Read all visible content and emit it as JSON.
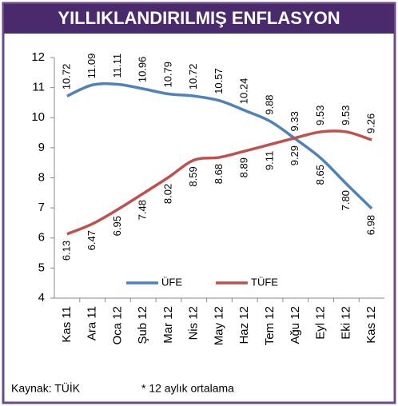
{
  "chart_data": {
    "type": "line",
    "title": "YILLIKLANDIRILMIŞ ENFLASYON",
    "categories": [
      "Kas 11",
      "Ara 11",
      "Oca 12",
      "Şub 12",
      "Mar 12",
      "Nis 12",
      "May 12",
      "Haz 12",
      "Tem 12",
      "Ağu 12",
      "Eyl 12",
      "Eki 12",
      "Kas 12"
    ],
    "series": [
      {
        "name": "ÜFE",
        "color": "#4f81bd",
        "values": [
          10.72,
          11.09,
          11.11,
          10.96,
          10.79,
          10.72,
          10.57,
          10.24,
          9.88,
          9.29,
          8.65,
          7.8,
          6.98
        ],
        "value_labels": [
          "10.72",
          "11.09",
          "11.11",
          "10.96",
          "10.79",
          "10.72",
          "10.57",
          "10.24",
          "9.88",
          "9.29",
          "8.65",
          "7.80",
          "6.98"
        ]
      },
      {
        "name": "TÜFE",
        "color": "#c0504d",
        "values": [
          6.13,
          6.47,
          6.95,
          7.48,
          8.02,
          8.59,
          8.68,
          8.89,
          9.11,
          9.33,
          9.53,
          9.53,
          9.26
        ],
        "value_labels": [
          "6.13",
          "6.47",
          "6.95",
          "7.48",
          "8.02",
          "8.59",
          "8.68",
          "8.89",
          "9.11",
          "9.33",
          "9.53",
          "9.53",
          "9.26"
        ]
      }
    ],
    "ylim": [
      4,
      12
    ],
    "yticks": [
      4,
      5,
      6,
      7,
      8,
      9,
      10,
      11,
      12
    ],
    "grid": false,
    "legend": "bottom",
    "source": "Kaynak: TÜİK",
    "note": "* 12 aylık ortalama"
  }
}
